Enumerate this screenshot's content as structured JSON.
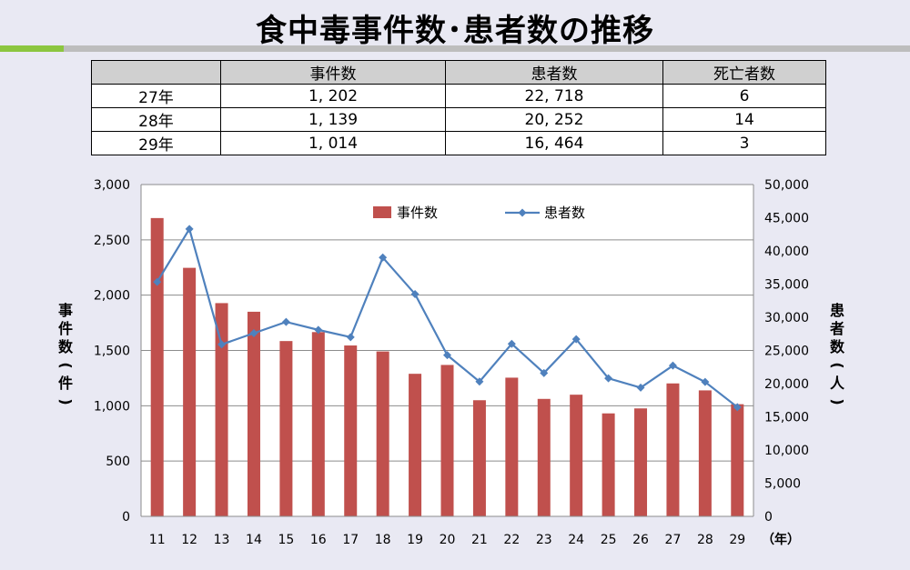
{
  "title": "食中毒事件数･患者数の推移",
  "table": {
    "headers": [
      "",
      "事件数",
      "患者数",
      "死亡者数"
    ],
    "rows": [
      [
        "27年",
        "1, 202",
        "22, 718",
        "6"
      ],
      [
        "28年",
        "1, 139",
        "20, 252",
        "14"
      ],
      [
        "29年",
        "1, 014",
        "16, 464",
        "3"
      ]
    ]
  },
  "chart_data": {
    "type": "bar",
    "categories": [
      "11",
      "12",
      "13",
      "14",
      "15",
      "16",
      "17",
      "18",
      "19",
      "20",
      "21",
      "22",
      "23",
      "24",
      "25",
      "26",
      "27",
      "28",
      "29"
    ],
    "x_unit_label": "（年）",
    "series": [
      {
        "name": "事件数",
        "type": "bar",
        "axis": "left",
        "color": "#c0504d",
        "values": [
          2697,
          2247,
          1928,
          1850,
          1585,
          1666,
          1545,
          1491,
          1289,
          1369,
          1050,
          1254,
          1062,
          1100,
          931,
          976,
          1202,
          1139,
          1014
        ]
      },
      {
        "name": "患者数",
        "type": "line",
        "axis": "right",
        "color": "#4f81bd",
        "values": [
          35330,
          43300,
          25900,
          27600,
          29300,
          28100,
          27000,
          39000,
          33500,
          24300,
          20300,
          26000,
          21600,
          26700,
          20800,
          19400,
          22718,
          20252,
          16464
        ]
      }
    ],
    "y_left": {
      "label": "事件数（件）",
      "min": 0,
      "max": 3000,
      "ticks": [
        "0",
        "500",
        "1,000",
        "1,500",
        "2,000",
        "2,500",
        "3,000"
      ]
    },
    "y_right": {
      "label": "患者数（人）",
      "min": 0,
      "max": 50000,
      "ticks": [
        "0",
        "5,000",
        "10,000",
        "15,000",
        "20,000",
        "25,000",
        "30,000",
        "35,000",
        "40,000",
        "45,000",
        "50,000"
      ]
    },
    "grid": true,
    "legend": "top-center"
  }
}
